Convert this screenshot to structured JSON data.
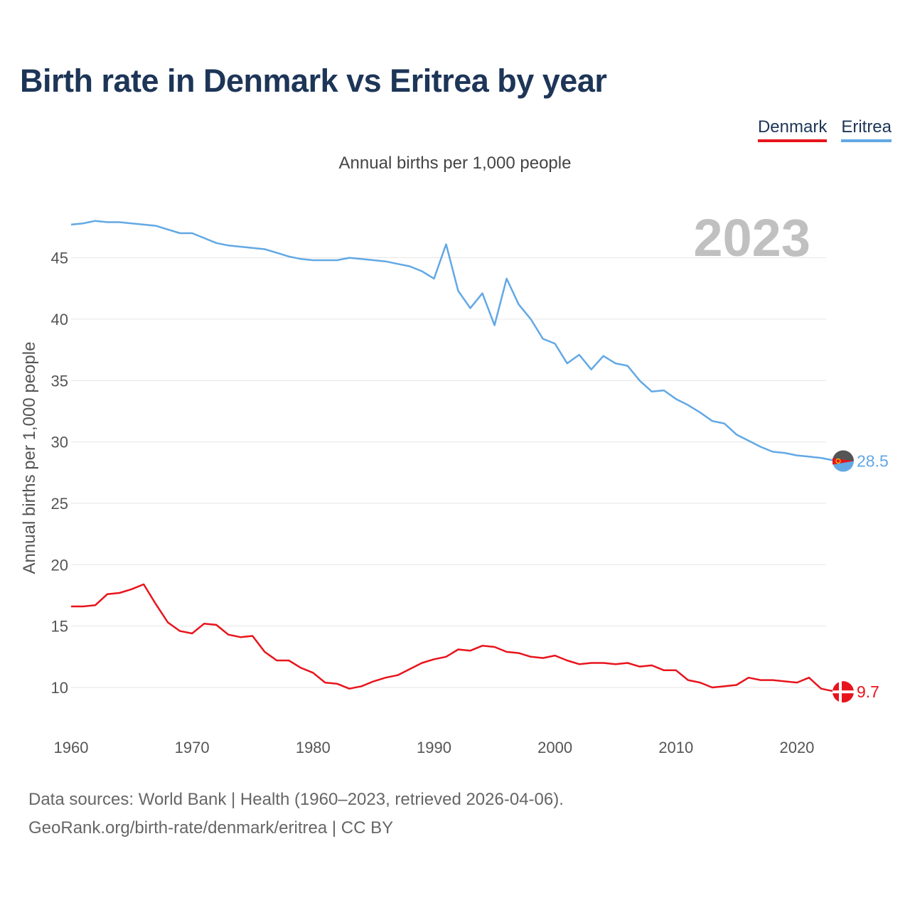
{
  "title": "Birth rate in Denmark vs Eritrea by year",
  "subtitle": "Annual births per 1,000 people",
  "legend": [
    {
      "label": "Denmark",
      "color": "#e8141c"
    },
    {
      "label": "Eritrea",
      "color": "#62a8e5"
    }
  ],
  "footer": {
    "line1": "Data sources: World Bank | Health (1960–2023, retrieved 2026-04-06).",
    "line2": "GeoRank.org/birth-rate/denmark/eritrea | CC BY"
  },
  "chart_data": {
    "type": "line",
    "title": "Birth rate in Denmark vs Eritrea by year",
    "subtitle": "Annual births per 1,000 people",
    "xlabel": "",
    "ylabel": "Annual births per 1,000 people",
    "year_watermark": "2023",
    "xlim": [
      1960,
      2023
    ],
    "ylim": [
      7,
      49
    ],
    "x_ticks": [
      1960,
      1970,
      1980,
      1990,
      2000,
      2010,
      2020
    ],
    "y_ticks": [
      10,
      15,
      20,
      25,
      30,
      35,
      40,
      45
    ],
    "grid": true,
    "x": [
      1960,
      1961,
      1962,
      1963,
      1964,
      1965,
      1966,
      1967,
      1968,
      1969,
      1970,
      1971,
      1972,
      1973,
      1974,
      1975,
      1976,
      1977,
      1978,
      1979,
      1980,
      1981,
      1982,
      1983,
      1984,
      1985,
      1986,
      1987,
      1988,
      1989,
      1990,
      1991,
      1992,
      1993,
      1994,
      1995,
      1996,
      1997,
      1998,
      1999,
      2000,
      2001,
      2002,
      2003,
      2004,
      2005,
      2006,
      2007,
      2008,
      2009,
      2010,
      2011,
      2012,
      2013,
      2014,
      2015,
      2016,
      2017,
      2018,
      2019,
      2020,
      2021,
      2022,
      2023
    ],
    "series": [
      {
        "name": "Denmark",
        "color": "#e8141c",
        "end_label": "9.7",
        "values": [
          16.6,
          16.6,
          16.7,
          17.6,
          17.7,
          18.0,
          18.4,
          16.8,
          15.3,
          14.6,
          14.4,
          15.2,
          15.1,
          14.3,
          14.1,
          14.2,
          12.9,
          12.2,
          12.2,
          11.6,
          11.2,
          10.4,
          10.3,
          9.9,
          10.1,
          10.5,
          10.8,
          11.0,
          11.5,
          12.0,
          12.3,
          12.5,
          13.1,
          13.0,
          13.4,
          13.3,
          12.9,
          12.8,
          12.5,
          12.4,
          12.6,
          12.2,
          11.9,
          12.0,
          12.0,
          11.9,
          12.0,
          11.7,
          11.8,
          11.4,
          11.4,
          10.6,
          10.4,
          10.0,
          10.1,
          10.2,
          10.8,
          10.6,
          10.6,
          10.5,
          10.4,
          10.8,
          9.9,
          9.7
        ]
      },
      {
        "name": "Eritrea",
        "color": "#62a8e5",
        "end_label": "28.5",
        "values": [
          47.7,
          47.8,
          48.0,
          47.9,
          47.9,
          47.8,
          47.7,
          47.6,
          47.3,
          47.0,
          47.0,
          46.6,
          46.2,
          46.0,
          45.9,
          45.8,
          45.7,
          45.4,
          45.1,
          44.9,
          44.8,
          44.8,
          44.8,
          45.0,
          44.9,
          44.8,
          44.7,
          44.5,
          44.3,
          43.9,
          43.3,
          46.1,
          42.3,
          40.9,
          42.1,
          39.5,
          43.3,
          41.2,
          40.0,
          38.4,
          38.0,
          36.4,
          37.1,
          35.9,
          37.0,
          36.4,
          36.2,
          35.0,
          34.1,
          34.2,
          33.5,
          33.0,
          32.4,
          31.7,
          31.5,
          30.6,
          30.1,
          29.6,
          29.2,
          29.1,
          28.9,
          28.8,
          28.7,
          28.5
        ]
      }
    ]
  }
}
